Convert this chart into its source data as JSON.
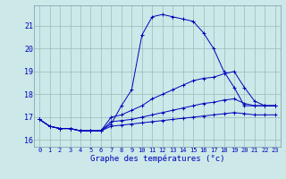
{
  "xlabel": "Graphe des températures (°c)",
  "background_color": "#cce8e8",
  "line_color": "#0000bb",
  "grid_color": "#99bbbb",
  "xlim": [
    -0.5,
    23.5
  ],
  "ylim": [
    15.7,
    21.9
  ],
  "yticks": [
    16,
    17,
    18,
    19,
    20,
    21
  ],
  "xticks": [
    0,
    1,
    2,
    3,
    4,
    5,
    6,
    7,
    8,
    9,
    10,
    11,
    12,
    13,
    14,
    15,
    16,
    17,
    18,
    19,
    20,
    21,
    22,
    23
  ],
  "series": [
    {
      "x": [
        0,
        1,
        2,
        3,
        4,
        5,
        6,
        7,
        8,
        9,
        10,
        11,
        12,
        13,
        14,
        15,
        16,
        17,
        18,
        19,
        20,
        21,
        22,
        23
      ],
      "y": [
        16.9,
        16.6,
        16.5,
        16.5,
        16.4,
        16.4,
        16.4,
        16.7,
        17.5,
        18.2,
        20.6,
        21.4,
        21.5,
        21.4,
        21.3,
        21.2,
        20.7,
        20.0,
        19.0,
        18.3,
        17.5,
        17.5,
        17.5,
        17.5
      ]
    },
    {
      "x": [
        0,
        1,
        2,
        3,
        4,
        5,
        6,
        7,
        8,
        9,
        10,
        11,
        12,
        13,
        14,
        15,
        16,
        17,
        18,
        19,
        20,
        21,
        22,
        23
      ],
      "y": [
        16.9,
        16.6,
        16.5,
        16.5,
        16.4,
        16.4,
        16.4,
        17.0,
        17.1,
        17.3,
        17.5,
        17.8,
        18.0,
        18.2,
        18.4,
        18.6,
        18.7,
        18.75,
        18.9,
        19.0,
        18.3,
        17.7,
        17.5,
        17.5
      ]
    },
    {
      "x": [
        0,
        1,
        2,
        3,
        4,
        5,
        6,
        7,
        8,
        9,
        10,
        11,
        12,
        13,
        14,
        15,
        16,
        17,
        18,
        19,
        20,
        21,
        22,
        23
      ],
      "y": [
        16.9,
        16.6,
        16.5,
        16.5,
        16.4,
        16.4,
        16.4,
        16.8,
        16.85,
        16.9,
        17.0,
        17.1,
        17.2,
        17.3,
        17.4,
        17.5,
        17.6,
        17.65,
        17.75,
        17.8,
        17.6,
        17.5,
        17.5,
        17.5
      ]
    },
    {
      "x": [
        0,
        1,
        2,
        3,
        4,
        5,
        6,
        7,
        8,
        9,
        10,
        11,
        12,
        13,
        14,
        15,
        16,
        17,
        18,
        19,
        20,
        21,
        22,
        23
      ],
      "y": [
        16.9,
        16.6,
        16.5,
        16.5,
        16.4,
        16.4,
        16.4,
        16.6,
        16.65,
        16.7,
        16.75,
        16.8,
        16.85,
        16.9,
        16.95,
        17.0,
        17.05,
        17.1,
        17.15,
        17.2,
        17.15,
        17.1,
        17.1,
        17.1
      ]
    }
  ],
  "figsize": [
    3.2,
    2.0
  ],
  "dpi": 100
}
